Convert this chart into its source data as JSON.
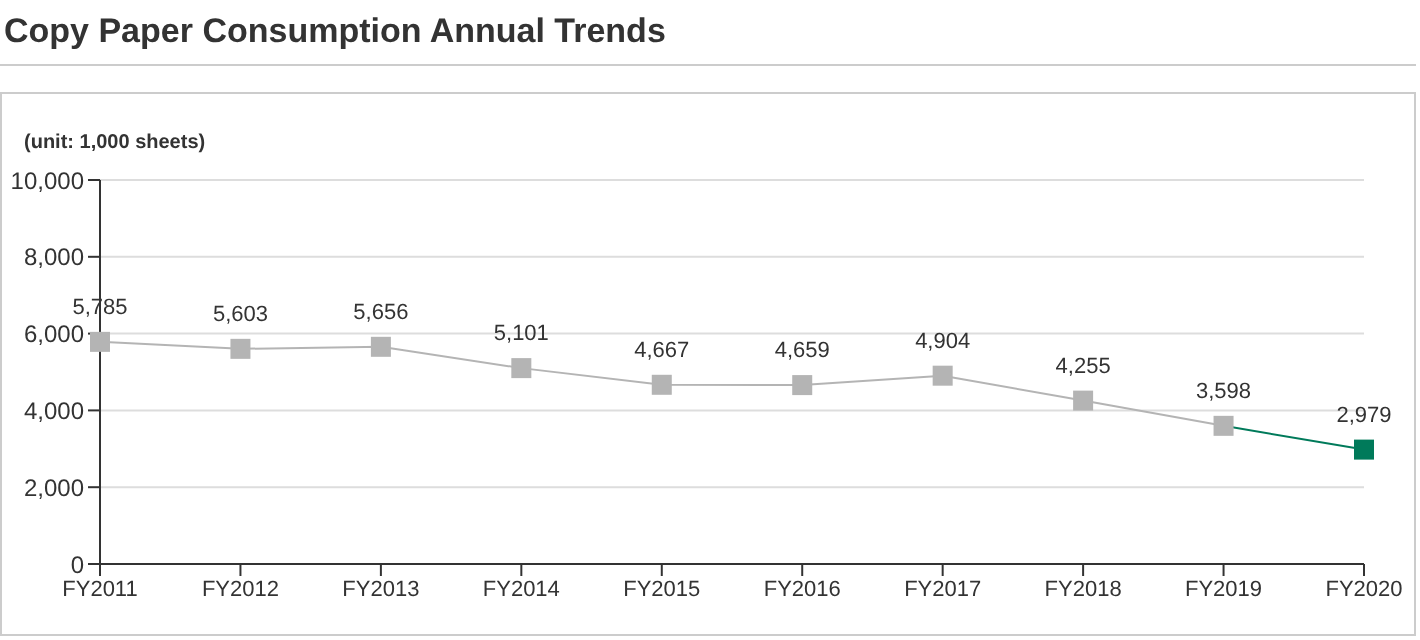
{
  "chart_data": {
    "type": "line",
    "title": "Copy Paper Consumption Annual Trends",
    "ylabel": "(unit: 1,000 sheets)",
    "categories": [
      "FY2011",
      "FY2012",
      "FY2013",
      "FY2014",
      "FY2015",
      "FY2016",
      "FY2017",
      "FY2018",
      "FY2019",
      "FY2020"
    ],
    "values": [
      5785,
      5603,
      5656,
      5101,
      4667,
      4659,
      4904,
      4255,
      3598,
      2979
    ],
    "colors": [
      "#b4b4b4",
      "#b4b4b4",
      "#b4b4b4",
      "#b4b4b4",
      "#b4b4b4",
      "#b4b4b4",
      "#b4b4b4",
      "#b4b4b4",
      "#b4b4b4",
      "#007a5a"
    ],
    "ylim": [
      0,
      10000
    ],
    "yticks": [
      {
        "value": 0,
        "label": "0"
      },
      {
        "value": 2000,
        "label": "2,000"
      },
      {
        "value": 4000,
        "label": "4,000"
      },
      {
        "value": 6000,
        "label": "6,000"
      },
      {
        "value": 8000,
        "label": "8,000"
      },
      {
        "value": 10000,
        "label": "10,000"
      }
    ],
    "value_labels": [
      "5,785",
      "5,603",
      "5,656",
      "5,101",
      "4,667",
      "4,659",
      "4,904",
      "4,255",
      "3,598",
      "2,979"
    ],
    "grid": "y",
    "marker": "square",
    "line_style": "solid"
  }
}
